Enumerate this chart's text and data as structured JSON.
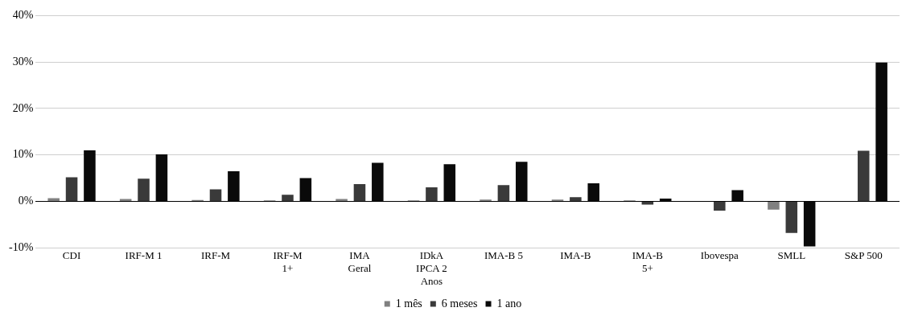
{
  "chart_data": {
    "type": "bar",
    "categories": [
      "CDI",
      "IRF-M 1",
      "IRF-M",
      "IRF-M 1+",
      "IMA Geral",
      "IDkA IPCA 2 Anos",
      "IMA-B 5",
      "IMA-B",
      "IMA-B 5+",
      "Ibovespa",
      "SMLL",
      "S&P 500"
    ],
    "series": [
      {
        "name": "1 mês",
        "color": "#808080",
        "values": [
          0.7,
          0.5,
          0.3,
          0.2,
          0.5,
          0.2,
          0.4,
          0.4,
          0.2,
          null,
          -1.8,
          null
        ]
      },
      {
        "name": "6 meses",
        "color": "#3a3a3a",
        "values": [
          5.2,
          4.9,
          2.6,
          1.4,
          3.7,
          3.0,
          3.5,
          0.9,
          -0.7,
          -2.0,
          -6.8,
          10.9
        ]
      },
      {
        "name": "1 ano",
        "color": "#0a0a0a",
        "values": [
          11.0,
          10.1,
          6.5,
          5.0,
          8.3,
          8.0,
          8.5,
          3.9,
          0.6,
          2.4,
          -9.7,
          29.9
        ]
      }
    ],
    "ylim": [
      -10,
      40
    ],
    "yticks": [
      {
        "value": -10,
        "label": "-10%"
      },
      {
        "value": 0,
        "label": "0%"
      },
      {
        "value": 10,
        "label": "10%"
      },
      {
        "value": 20,
        "label": "20%"
      },
      {
        "value": 30,
        "label": "30%"
      },
      {
        "value": 40,
        "label": "40%"
      }
    ],
    "grid": "y",
    "legend": "bottom"
  }
}
